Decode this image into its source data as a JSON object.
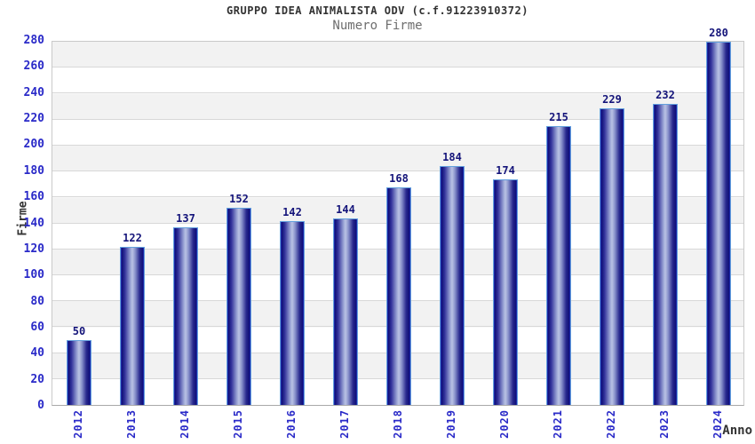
{
  "chart_data": {
    "type": "bar",
    "title": "GRUPPO IDEA ANIMALISTA ODV (c.f.91223910372)",
    "subtitle": "Numero Firme",
    "ylabel": "Firme",
    "xlabel": "Anno",
    "categories": [
      "2012",
      "2013",
      "2014",
      "2015",
      "2016",
      "2017",
      "2018",
      "2019",
      "2020",
      "2021",
      "2022",
      "2023",
      "2024"
    ],
    "values": [
      50,
      122,
      137,
      152,
      142,
      144,
      168,
      184,
      174,
      215,
      229,
      232,
      280
    ],
    "ylim": [
      0,
      280
    ],
    "ytick_step": 20,
    "grid": true,
    "legend_position": "none",
    "value_labels_shown": true
  },
  "colors": {
    "title": "#333333",
    "subtitle": "#6e6e6e",
    "axis_tick_labels": "#2a2ac8",
    "bar_value_labels": "#14147a",
    "axis_titles": "#333333",
    "bar_dark": "#101078",
    "bar_light": "#bac2e4",
    "bar_edge": "#2335c4",
    "bar_border": "#63a0dd",
    "band_stripe": "#f2f2f2",
    "gridline": "#d8d8d8",
    "plot_border": "#c9c9c9",
    "background": "#ffffff"
  }
}
